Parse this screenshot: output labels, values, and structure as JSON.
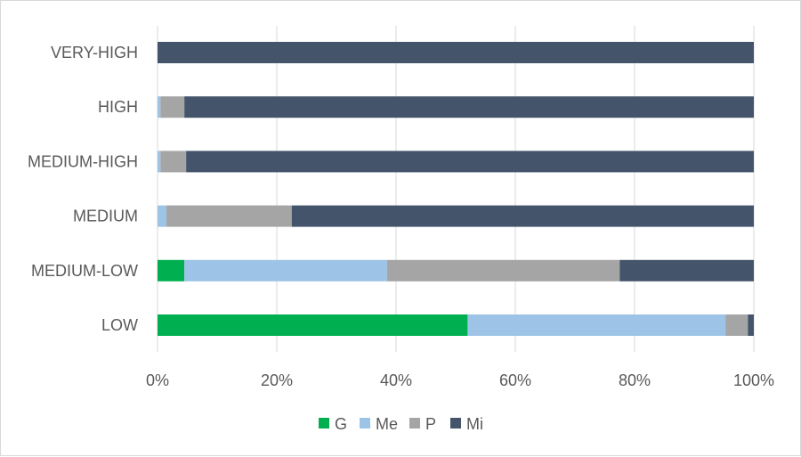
{
  "chart_data": {
    "type": "bar",
    "orientation": "horizontal",
    "stacked": true,
    "percent_stacked": true,
    "categories": [
      "VERY-HIGH",
      "HIGH",
      "MEDIUM-HIGH",
      "MEDIUM",
      "MEDIUM-LOW",
      "LOW"
    ],
    "series": [
      {
        "name": "G",
        "color": "#00b050",
        "values": [
          0,
          0,
          0,
          0,
          4.5,
          52
        ]
      },
      {
        "name": "Me",
        "color": "#9dc3e6",
        "values": [
          0,
          0.5,
          0.5,
          1.5,
          34,
          43.3
        ]
      },
      {
        "name": "P",
        "color": "#a5a5a5",
        "values": [
          0,
          4,
          4.3,
          21,
          39,
          3.7
        ]
      },
      {
        "name": "Mi",
        "color": "#44546a",
        "values": [
          100,
          95.5,
          95.2,
          77.5,
          22.5,
          1
        ]
      }
    ],
    "x_ticks": [
      "0%",
      "20%",
      "40%",
      "60%",
      "80%",
      "100%"
    ],
    "xlim": [
      0,
      100
    ],
    "grid": true,
    "legend_position": "bottom"
  }
}
